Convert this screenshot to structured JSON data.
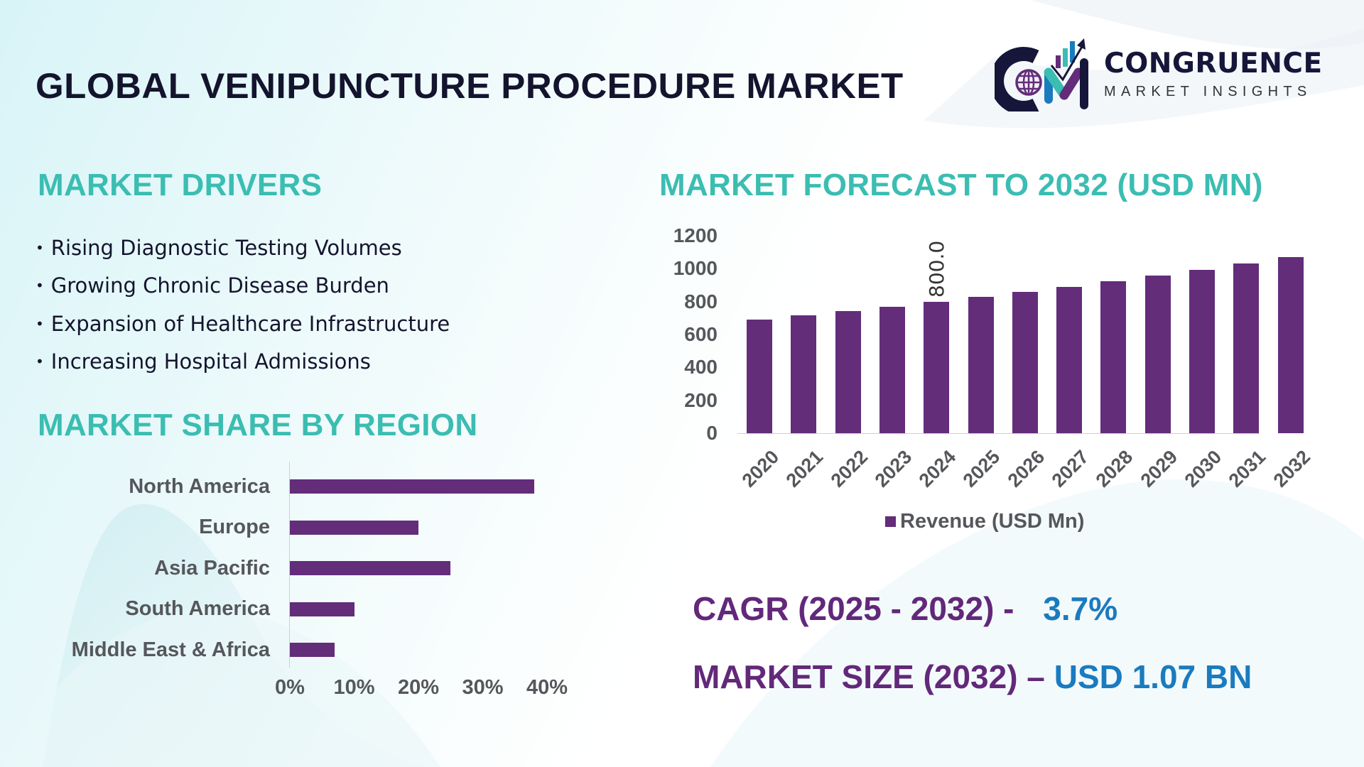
{
  "header": {
    "title": "GLOBAL VENIPUNCTURE PROCEDURE MARKET",
    "logo": {
      "name": "CONGRUENCE",
      "subtitle": "MARKET INSIGHTS",
      "icon": "cm-globe-chart-logo-icon"
    }
  },
  "drivers": {
    "title": "MARKET DRIVERS",
    "bullet": "•",
    "items": [
      "Rising Diagnostic Testing Volumes",
      "Growing Chronic Disease Burden",
      "Expansion of Healthcare Infrastructure",
      "Increasing Hospital Admissions"
    ]
  },
  "region": {
    "title": "MARKET SHARE BY REGION"
  },
  "forecast": {
    "title": "MARKET FORECAST TO 2032 (USD MN)"
  },
  "stats": {
    "cagr_label": "CAGR (2025 - 2032) - ",
    "cagr_value": "3.7%",
    "size_label": "MARKET SIZE (2032) – ",
    "size_value": "USD 1.07 BN"
  },
  "colors": {
    "bar": "#632d7a",
    "section_title": "#3bbdb2",
    "stat_label": "#62287a",
    "stat_value": "#1a7bbf",
    "title": "#14142e",
    "axis_text": "#55575b"
  },
  "chart_data": [
    {
      "type": "bar",
      "orientation": "horizontal",
      "title": "MARKET SHARE BY REGION",
      "categories": [
        "North America",
        "Europe",
        "Asia Pacific",
        "South America",
        "Middle East & Africa"
      ],
      "values": [
        38,
        20,
        25,
        10,
        7
      ],
      "unit": "%",
      "xlabel": "",
      "ylabel": "",
      "xlim": [
        0,
        40
      ],
      "x_ticks": [
        "0%",
        "10%",
        "20%",
        "30%",
        "40%"
      ],
      "grid": false,
      "legend": null
    },
    {
      "type": "bar",
      "orientation": "vertical",
      "title": "MARKET FORECAST TO 2032 (USD MN)",
      "categories": [
        "2020",
        "2021",
        "2022",
        "2023",
        "2024",
        "2025",
        "2026",
        "2027",
        "2028",
        "2029",
        "2030",
        "2031",
        "2032"
      ],
      "series": [
        {
          "name": "Revenue (USD Mn)",
          "values": [
            691,
            717,
            743,
            769,
            800,
            829,
            860,
            890,
            924,
            959,
            994,
            1033,
            1071
          ]
        }
      ],
      "annotations": [
        {
          "category": "2024",
          "label": "800.0"
        }
      ],
      "xlabel": "",
      "ylabel": "",
      "ylim": [
        0,
        1200
      ],
      "y_ticks": [
        "0",
        "200",
        "400",
        "600",
        "800",
        "1000",
        "1200"
      ],
      "grid": false,
      "legend_position": "bottom"
    }
  ]
}
